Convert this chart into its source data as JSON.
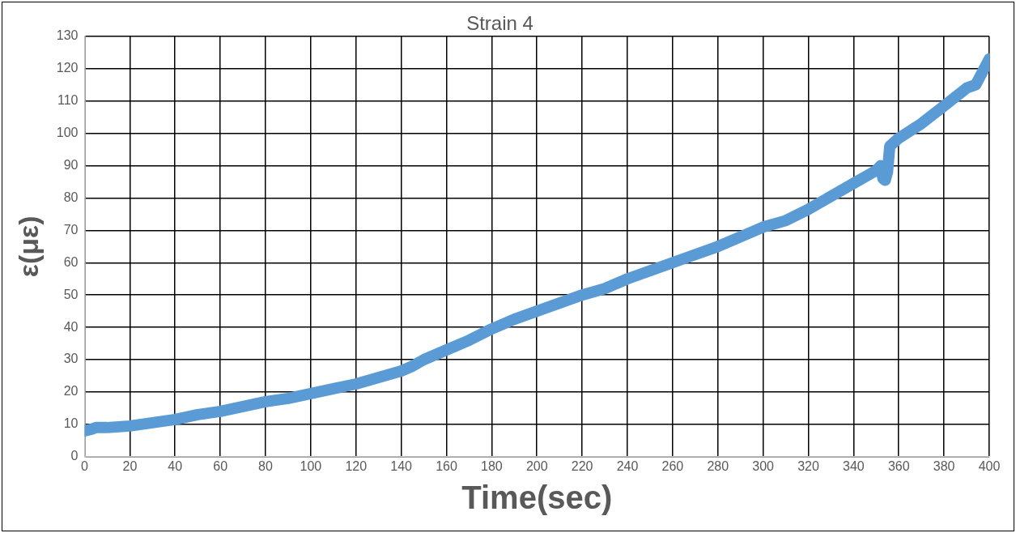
{
  "chart_data": {
    "type": "line",
    "title": "Strain 4",
    "xlabel": "Time(sec)",
    "ylabel": "ε(με)",
    "xlim": [
      0,
      400
    ],
    "xticks": [
      0,
      20,
      40,
      60,
      80,
      100,
      120,
      140,
      160,
      180,
      200,
      220,
      240,
      260,
      280,
      300,
      320,
      340,
      360,
      380,
      400
    ],
    "ylim": [
      0,
      130
    ],
    "yticks": [
      0,
      10,
      20,
      30,
      40,
      50,
      60,
      70,
      80,
      90,
      100,
      110,
      120,
      130
    ],
    "grid": true,
    "legend": false,
    "marker": "none",
    "line_style": "solid",
    "series": [
      {
        "color": "#5b9bd5",
        "x": [
          0,
          3,
          5,
          10,
          20,
          30,
          40,
          50,
          60,
          70,
          80,
          90,
          100,
          110,
          120,
          130,
          140,
          145,
          150,
          160,
          170,
          180,
          190,
          200,
          210,
          220,
          230,
          240,
          250,
          260,
          270,
          280,
          290,
          300,
          310,
          320,
          330,
          340,
          350,
          352,
          353,
          354,
          355,
          356,
          360,
          370,
          380,
          390,
          394,
          397,
          400
        ],
        "values": [
          8,
          8.5,
          9,
          9,
          9.5,
          10.5,
          11.5,
          13,
          14,
          15.5,
          17,
          18,
          19.5,
          21,
          22.5,
          24.5,
          26.5,
          28,
          30,
          33,
          36,
          39.5,
          42.5,
          45,
          47.5,
          50,
          52,
          55,
          57.5,
          60,
          62.5,
          65,
          68,
          71,
          73,
          76.5,
          80.5,
          84.5,
          88.5,
          90,
          86,
          85.5,
          88,
          96,
          98.5,
          103,
          108.5,
          114,
          115,
          119,
          123
        ]
      }
    ]
  }
}
